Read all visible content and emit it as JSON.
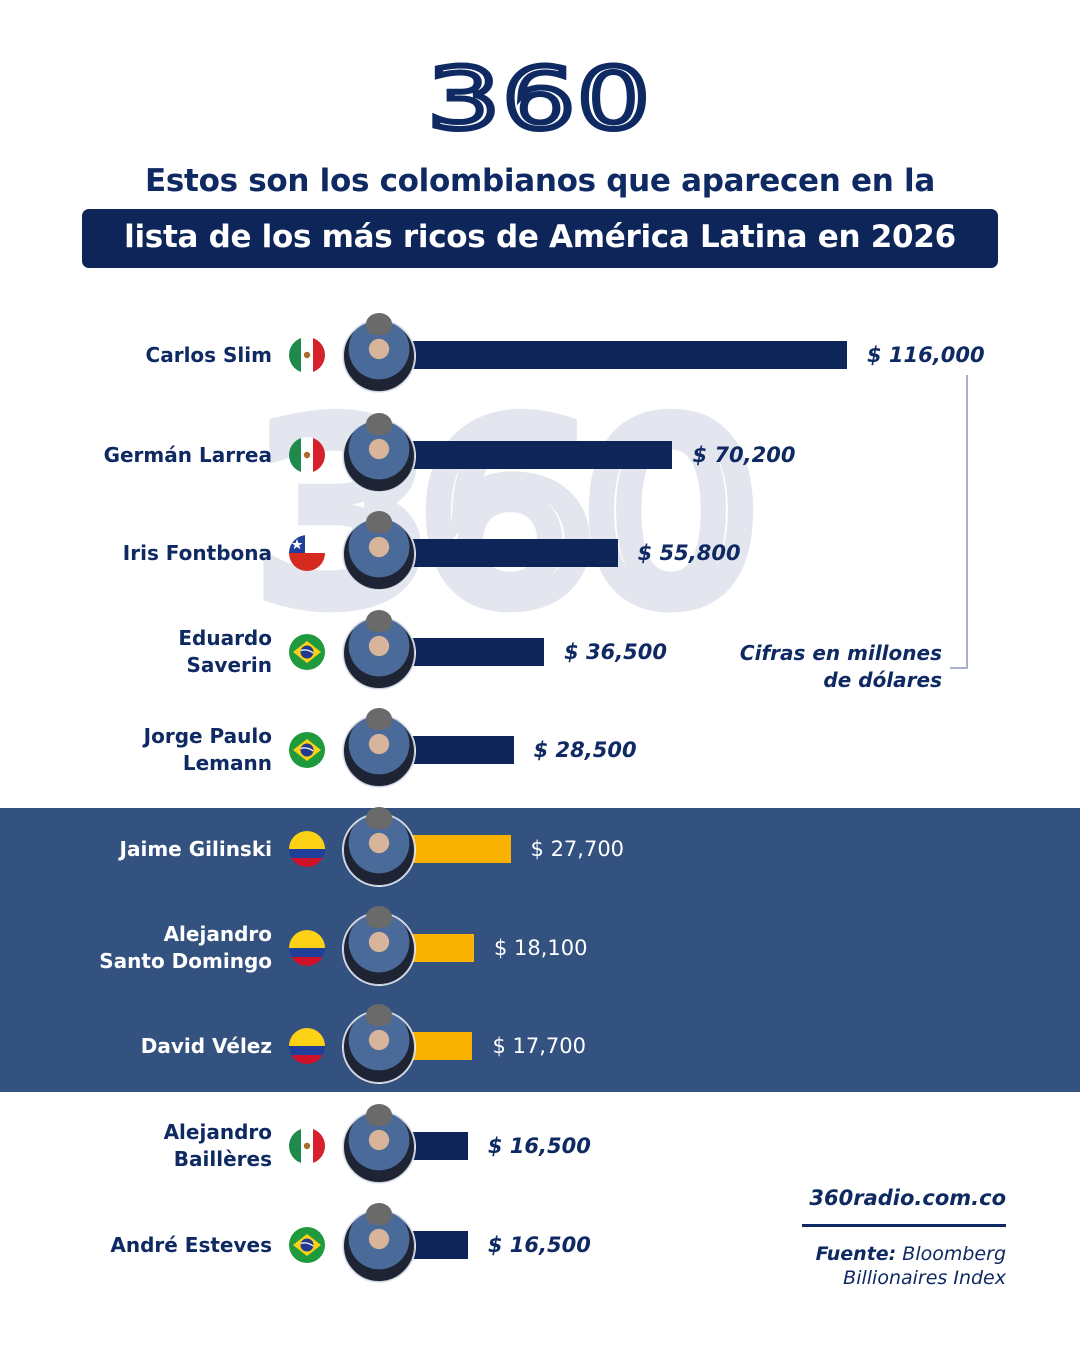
{
  "header": {
    "logo": "360",
    "title_line1": "Estos son los colombianos que aparecen en la",
    "title_line2": "lista de los más ricos de América Latina en 2026"
  },
  "watermark": "360",
  "colors": {
    "navy": "#0d2559",
    "highlight_band": "#34527f",
    "colombia_bar": "#f9b200",
    "watermark": "#e3e6ee"
  },
  "rows": [
    {
      "name": "Carlos Slim",
      "country": "Mexico",
      "value_label": "$ 116,000",
      "highlighted": false
    },
    {
      "name": "Germán Larrea",
      "country": "Mexico",
      "value_label": "$ 70,200",
      "highlighted": false
    },
    {
      "name": "Iris Fontbona",
      "country": "Chile",
      "value_label": "$ 55,800",
      "highlighted": false
    },
    {
      "name": "Eduardo\nSaverin",
      "country": "Brazil",
      "value_label": "$ 36,500",
      "highlighted": false
    },
    {
      "name": "Jorge Paulo\nLemann",
      "country": "Brazil",
      "value_label": "$ 28,500",
      "highlighted": false
    },
    {
      "name": "Jaime Gilinski",
      "country": "Colombia",
      "value_label": "$ 27,700",
      "highlighted": true
    },
    {
      "name": "Alejandro\nSanto Domingo",
      "country": "Colombia",
      "value_label": "$ 18,100",
      "highlighted": true
    },
    {
      "name": "David Vélez",
      "country": "Colombia",
      "value_label": "$ 17,700",
      "highlighted": true
    },
    {
      "name": "Alejandro\nBaillères",
      "country": "Mexico",
      "value_label": "$ 16,500",
      "highlighted": false
    },
    {
      "name": "André Esteves",
      "country": "Brazil",
      "value_label": "$ 16,500",
      "highlighted": false
    }
  ],
  "note": "Cifras en millones\nde dólares",
  "footer": {
    "site": "360radio.com.co",
    "source_label": "Fuente:",
    "source_text": " Bloomberg\nBillionaires Index"
  },
  "chart_data": {
    "type": "bar",
    "orientation": "horizontal",
    "title": "Estos son los colombianos que aparecen en la lista de los más ricos de América Latina en 2026",
    "categories": [
      "Carlos Slim",
      "Germán Larrea",
      "Iris Fontbona",
      "Eduardo Saverin",
      "Jorge Paulo Lemann",
      "Jaime Gilinski",
      "Alejandro Santo Domingo",
      "David Vélez",
      "Alejandro Baillères",
      "André Esteves"
    ],
    "countries": [
      "Mexico",
      "Mexico",
      "Chile",
      "Brazil",
      "Brazil",
      "Colombia",
      "Colombia",
      "Colombia",
      "Mexico",
      "Brazil"
    ],
    "values": [
      116000,
      70200,
      55800,
      36500,
      28500,
      27700,
      18100,
      17700,
      16500,
      16500
    ],
    "highlighted_categories": [
      "Jaime Gilinski",
      "Alejandro Santo Domingo",
      "David Vélez"
    ],
    "xlabel": "",
    "ylabel": "",
    "units": "Cifras en millones de dólares",
    "source": "Fuente: Bloomberg Billionaires Index",
    "grid": false,
    "legend": null
  }
}
